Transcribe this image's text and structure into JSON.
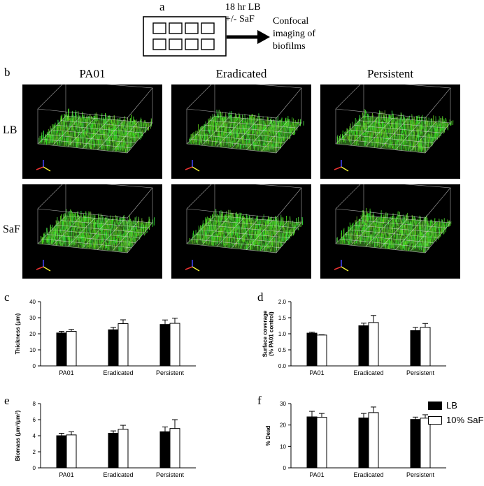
{
  "panel_a": {
    "letter": "a",
    "protocol_line1": "18 hr LB",
    "protocol_line2": "+/- SaF",
    "outcome_line1": "Confocal",
    "outcome_line2": "imaging of",
    "outcome_line3": "biofilms"
  },
  "panel_b": {
    "letter": "b",
    "columns": [
      "PA01",
      "Eradicated",
      "Persistent"
    ],
    "rows": [
      "LB",
      "SaF"
    ]
  },
  "legend": {
    "items": [
      {
        "label": "LB",
        "color": "#000000"
      },
      {
        "label": "10% SaF",
        "color": "#ffffff"
      }
    ]
  },
  "colors": {
    "lb": "#000000",
    "saf": "#ffffff",
    "biofilm": "#4caf2a",
    "tile_bg": "#000000",
    "grid": "#cfcfcf"
  },
  "chart_data": [
    {
      "id": "c",
      "letter": "c",
      "type": "bar",
      "categories": [
        "PA01",
        "Eradicated",
        "Persistent"
      ],
      "series": [
        {
          "name": "LB",
          "values": [
            20.5,
            22.5,
            25.8
          ],
          "errors": [
            1.0,
            1.5,
            2.8
          ]
        },
        {
          "name": "10% SaF",
          "values": [
            21.5,
            26.3,
            26.5
          ],
          "errors": [
            1.2,
            2.4,
            3.2
          ]
        }
      ],
      "ylabel": "Thickness (μm)",
      "ylim": [
        0,
        40
      ],
      "yticks": [
        "0",
        "10",
        "20",
        "30",
        "40"
      ]
    },
    {
      "id": "d",
      "letter": "d",
      "type": "bar",
      "categories": [
        "PA01",
        "Eradicated",
        "Persistent"
      ],
      "series": [
        {
          "name": "LB",
          "values": [
            1.02,
            1.25,
            1.1
          ],
          "errors": [
            0.03,
            0.08,
            0.1
          ]
        },
        {
          "name": "10% SaF",
          "values": [
            0.96,
            1.35,
            1.2
          ],
          "errors": [
            0.01,
            0.22,
            0.12
          ]
        }
      ],
      "ylabel": "Surface coverage (% PA01 control)",
      "ylim": [
        0,
        2.0
      ],
      "yticks": [
        "0.0",
        "0.5",
        "1.0",
        "1.5",
        "2.0"
      ]
    },
    {
      "id": "e",
      "letter": "e",
      "type": "bar",
      "categories": [
        "PA01",
        "Eradicated",
        "Persistent"
      ],
      "series": [
        {
          "name": "LB",
          "values": [
            4.0,
            4.3,
            4.5
          ],
          "errors": [
            0.3,
            0.3,
            0.6
          ]
        },
        {
          "name": "10% SaF",
          "values": [
            4.1,
            4.8,
            4.9
          ],
          "errors": [
            0.4,
            0.5,
            1.1
          ]
        }
      ],
      "ylabel": "Biomass (μm³/μm²)",
      "ylim": [
        0,
        8
      ],
      "yticks": [
        "0",
        "2",
        "4",
        "6",
        "8"
      ]
    },
    {
      "id": "f",
      "letter": "f",
      "type": "bar",
      "categories": [
        "PA01",
        "Eradicated",
        "Persistent"
      ],
      "series": [
        {
          "name": "LB",
          "values": [
            23.8,
            23.3,
            22.6
          ],
          "errors": [
            2.6,
            2.1,
            1.1
          ]
        },
        {
          "name": "10% SaF",
          "values": [
            23.6,
            25.8,
            23.2
          ],
          "errors": [
            1.8,
            2.6,
            1.6
          ]
        }
      ],
      "ylabel": "% Dead",
      "ylim": [
        0,
        30
      ],
      "yticks": [
        "0",
        "10",
        "20",
        "30"
      ]
    }
  ]
}
